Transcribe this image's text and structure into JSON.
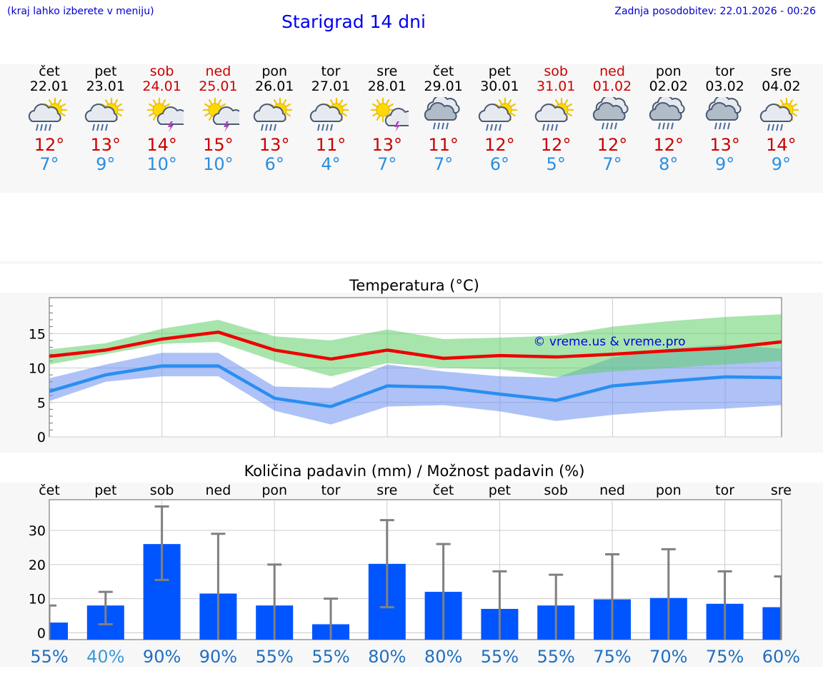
{
  "header": {
    "hint": "(kraj lahko izberete v meniju)",
    "title": "Starigrad 14 dni",
    "updated": "Zadnja posodobitev: 22.01.2026 - 00:26"
  },
  "colors": {
    "weekday": "#000000",
    "weekend": "#cc0000",
    "max_temp": "#cc0000",
    "min_temp": "#2a8ee0",
    "rain_bar": "#0055ff",
    "pct_high": "#1f6fbf",
    "pct_low": "#3a9ad9"
  },
  "days": [
    {
      "name": "čet",
      "date": "22.01",
      "weekend": false,
      "icon": "sun-cloud-rain-icon",
      "max": "12°",
      "min": "7°"
    },
    {
      "name": "pet",
      "date": "23.01",
      "weekend": false,
      "icon": "sun-cloud-rain-icon",
      "max": "13°",
      "min": "9°"
    },
    {
      "name": "sob",
      "date": "24.01",
      "weekend": true,
      "icon": "sun-cloud-thunder-icon",
      "max": "14°",
      "min": "10°"
    },
    {
      "name": "ned",
      "date": "25.01",
      "weekend": true,
      "icon": "sun-cloud-thunder-icon",
      "max": "15°",
      "min": "10°"
    },
    {
      "name": "pon",
      "date": "26.01",
      "weekend": false,
      "icon": "sun-cloud-rain-icon",
      "max": "13°",
      "min": "6°"
    },
    {
      "name": "tor",
      "date": "27.01",
      "weekend": false,
      "icon": "sun-cloud-rain-icon",
      "max": "11°",
      "min": "4°"
    },
    {
      "name": "sre",
      "date": "28.01",
      "weekend": false,
      "icon": "sun-thunder-icon",
      "max": "13°",
      "min": "7°"
    },
    {
      "name": "čet",
      "date": "29.01",
      "weekend": false,
      "icon": "cloud-rain-icon",
      "max": "11°",
      "min": "7°"
    },
    {
      "name": "pet",
      "date": "30.01",
      "weekend": false,
      "icon": "sun-cloud-rain-icon",
      "max": "12°",
      "min": "6°"
    },
    {
      "name": "sob",
      "date": "31.01",
      "weekend": true,
      "icon": "sun-cloud-rain-icon",
      "max": "12°",
      "min": "5°"
    },
    {
      "name": "ned",
      "date": "01.02",
      "weekend": true,
      "icon": "cloud-rain-icon",
      "max": "12°",
      "min": "7°"
    },
    {
      "name": "pon",
      "date": "02.02",
      "weekend": false,
      "icon": "cloud-rain-icon",
      "max": "12°",
      "min": "8°"
    },
    {
      "name": "tor",
      "date": "03.02",
      "weekend": false,
      "icon": "cloud-rain-icon",
      "max": "13°",
      "min": "9°"
    },
    {
      "name": "sre",
      "date": "04.02",
      "weekend": false,
      "icon": "sun-cloud-rain-icon",
      "max": "14°",
      "min": "9°"
    }
  ],
  "chart_data": [
    {
      "type": "line",
      "title": "Temperatura (°C)",
      "watermark": "© vreme.us & vreme.pro",
      "x": [
        0,
        1,
        2,
        3,
        4,
        5,
        6,
        7,
        8,
        9,
        10,
        11,
        12,
        13
      ],
      "ylim": [
        0,
        20
      ],
      "yticks": [
        0,
        5,
        10,
        15
      ],
      "series": [
        {
          "name": "max",
          "values": [
            11.7,
            12.6,
            14.2,
            15.2,
            12.6,
            11.3,
            12.6,
            11.4,
            11.8,
            11.6,
            12.0,
            12.5,
            12.9,
            13.8
          ]
        },
        {
          "name": "min",
          "values": [
            6.6,
            9.0,
            10.3,
            10.3,
            5.6,
            4.4,
            7.4,
            7.2,
            6.2,
            5.3,
            7.4,
            8.1,
            8.7,
            8.6
          ]
        }
      ],
      "bands": [
        {
          "name": "max-range",
          "low": [
            10.5,
            12.0,
            13.5,
            13.8,
            11.0,
            8.8,
            10.7,
            10.0,
            9.8,
            8.7,
            9.5,
            10.0,
            10.5,
            11.0
          ],
          "high": [
            12.7,
            13.6,
            15.7,
            17.0,
            14.6,
            14.0,
            15.6,
            14.2,
            14.4,
            14.7,
            16.0,
            16.8,
            17.4,
            17.8
          ]
        },
        {
          "name": "min-range",
          "low": [
            5.2,
            8.0,
            8.8,
            8.8,
            3.8,
            1.8,
            4.4,
            4.6,
            3.7,
            2.3,
            3.2,
            3.8,
            4.1,
            4.6
          ],
          "high": [
            8.5,
            10.5,
            12.2,
            12.2,
            7.3,
            7.1,
            10.5,
            9.5,
            8.8,
            8.6,
            11.5,
            12.8,
            13.4,
            12.8
          ]
        }
      ]
    },
    {
      "type": "bar",
      "title": "Količina padavin (mm) / Možnost padavin (%)",
      "categories": [
        "čet",
        "pet",
        "sob",
        "ned",
        "pon",
        "tor",
        "sre",
        "čet",
        "pet",
        "sob",
        "ned",
        "pon",
        "tor",
        "sre"
      ],
      "values": [
        3.0,
        8.0,
        26.0,
        11.5,
        8.0,
        2.5,
        20.2,
        12.0,
        7.0,
        8.0,
        9.8,
        10.2,
        8.5,
        7.5
      ],
      "error_low": [
        0,
        2.5,
        15.5,
        0,
        0,
        0,
        7.5,
        0,
        0,
        0,
        0,
        0,
        0,
        0
      ],
      "error_high": [
        8,
        12,
        37,
        29,
        20,
        10,
        33,
        26,
        18,
        17,
        23,
        24.5,
        18,
        16.5
      ],
      "ylim": [
        -2,
        39
      ],
      "yticks": [
        0,
        10,
        20,
        30
      ],
      "probability": [
        "55%",
        "40%",
        "90%",
        "90%",
        "55%",
        "55%",
        "80%",
        "80%",
        "55%",
        "55%",
        "75%",
        "70%",
        "75%",
        "60%"
      ]
    }
  ]
}
